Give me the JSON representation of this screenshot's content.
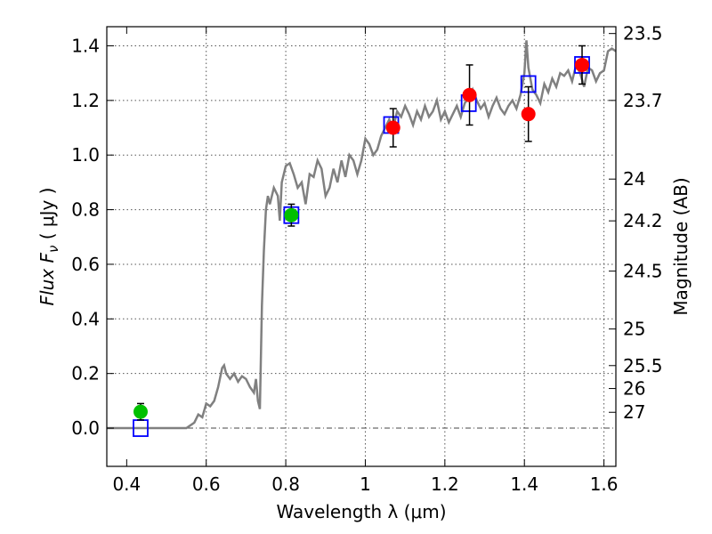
{
  "chart_data": {
    "type": "scatter",
    "xlabel": "Wavelength  λ (μm)",
    "ylabel": "Flux  F",
    "ylabel_sub": "ν",
    "ylabel_unit": " ( μJy )",
    "y2label": "Magnitude (AB)",
    "xlim": [
      0.35,
      1.63
    ],
    "ylim": [
      -0.14,
      1.47
    ],
    "grid": true,
    "x_ticks": [
      0.4,
      0.6,
      0.8,
      1.0,
      1.2,
      1.4,
      1.6
    ],
    "x_tick_labels": [
      "0.4",
      "0.6",
      "0.8",
      "1",
      "1.2",
      "1.4",
      "1.6"
    ],
    "y_ticks": [
      0.0,
      0.2,
      0.4,
      0.6,
      0.8,
      1.0,
      1.2,
      1.4
    ],
    "y_tick_labels": [
      "0.0",
      "0.2",
      "0.4",
      "0.6",
      "0.8",
      "1.0",
      "1.2",
      "1.4"
    ],
    "magnitude_ticks": [
      {
        "label": "23.5",
        "flux": 1.445
      },
      {
        "label": "23.7",
        "flux": 1.2
      },
      {
        "label": "24",
        "flux": 0.912
      },
      {
        "label": "24.2",
        "flux": 0.759
      },
      {
        "label": "24.5",
        "flux": 0.575
      },
      {
        "label": "25",
        "flux": 0.363
      },
      {
        "label": "25.5",
        "flux": 0.229
      },
      {
        "label": "26",
        "flux": 0.145
      },
      {
        "label": "27",
        "flux": 0.058
      }
    ],
    "model_sed": {
      "color": "#808080",
      "x": [
        0.35,
        0.4,
        0.45,
        0.5,
        0.55,
        0.57,
        0.58,
        0.59,
        0.6,
        0.61,
        0.62,
        0.63,
        0.64,
        0.645,
        0.65,
        0.66,
        0.67,
        0.68,
        0.69,
        0.7,
        0.71,
        0.72,
        0.725,
        0.73,
        0.735,
        0.74,
        0.745,
        0.75,
        0.755,
        0.76,
        0.77,
        0.78,
        0.785,
        0.79,
        0.8,
        0.81,
        0.82,
        0.83,
        0.84,
        0.85,
        0.86,
        0.87,
        0.88,
        0.89,
        0.9,
        0.91,
        0.92,
        0.93,
        0.94,
        0.95,
        0.96,
        0.97,
        0.98,
        0.99,
        1.0,
        1.01,
        1.02,
        1.03,
        1.04,
        1.05,
        1.06,
        1.07,
        1.08,
        1.09,
        1.1,
        1.11,
        1.12,
        1.13,
        1.14,
        1.15,
        1.16,
        1.17,
        1.18,
        1.19,
        1.2,
        1.21,
        1.22,
        1.23,
        1.24,
        1.25,
        1.26,
        1.27,
        1.28,
        1.29,
        1.3,
        1.31,
        1.32,
        1.33,
        1.34,
        1.35,
        1.36,
        1.37,
        1.38,
        1.39,
        1.4,
        1.405,
        1.41,
        1.42,
        1.43,
        1.44,
        1.45,
        1.46,
        1.47,
        1.48,
        1.49,
        1.5,
        1.51,
        1.52,
        1.53,
        1.54,
        1.55,
        1.56,
        1.57,
        1.58,
        1.59,
        1.6,
        1.61,
        1.62,
        1.63
      ],
      "y": [
        0.0,
        0.0,
        0.0,
        0.0,
        0.0,
        0.02,
        0.05,
        0.04,
        0.09,
        0.08,
        0.1,
        0.15,
        0.22,
        0.23,
        0.2,
        0.18,
        0.2,
        0.17,
        0.19,
        0.18,
        0.15,
        0.13,
        0.18,
        0.1,
        0.07,
        0.45,
        0.65,
        0.8,
        0.85,
        0.82,
        0.88,
        0.85,
        0.76,
        0.9,
        0.96,
        0.97,
        0.93,
        0.88,
        0.9,
        0.82,
        0.93,
        0.92,
        0.98,
        0.95,
        0.85,
        0.88,
        0.95,
        0.9,
        0.98,
        0.92,
        1.0,
        0.98,
        0.93,
        0.98,
        1.06,
        1.04,
        1.0,
        1.02,
        1.07,
        1.1,
        1.13,
        1.1,
        1.16,
        1.14,
        1.18,
        1.15,
        1.11,
        1.16,
        1.13,
        1.18,
        1.14,
        1.16,
        1.2,
        1.13,
        1.16,
        1.12,
        1.15,
        1.18,
        1.14,
        1.19,
        1.21,
        1.24,
        1.2,
        1.17,
        1.19,
        1.14,
        1.18,
        1.21,
        1.17,
        1.15,
        1.18,
        1.2,
        1.17,
        1.22,
        1.3,
        1.42,
        1.32,
        1.24,
        1.22,
        1.19,
        1.26,
        1.23,
        1.28,
        1.25,
        1.3,
        1.29,
        1.31,
        1.27,
        1.33,
        1.3,
        1.25,
        1.32,
        1.31,
        1.27,
        1.3,
        1.31,
        1.38,
        1.39,
        1.38
      ]
    },
    "model_photometry": {
      "color": "#0000ff",
      "x": [
        0.435,
        0.814,
        1.065,
        1.26,
        1.41,
        1.545
      ],
      "y": [
        0.0,
        0.78,
        1.11,
        1.19,
        1.26,
        1.33
      ]
    },
    "observed_green": {
      "color": "#00c000",
      "x": [
        0.435,
        0.814
      ],
      "y": [
        0.06,
        0.78
      ],
      "yerr": [
        0.03,
        0.04
      ]
    },
    "observed_red": {
      "color": "#ff0000",
      "x": [
        1.07,
        1.262,
        1.41,
        1.545
      ],
      "y": [
        1.1,
        1.22,
        1.15,
        1.33
      ],
      "yerr": [
        0.07,
        0.11,
        0.1,
        0.07
      ]
    }
  }
}
